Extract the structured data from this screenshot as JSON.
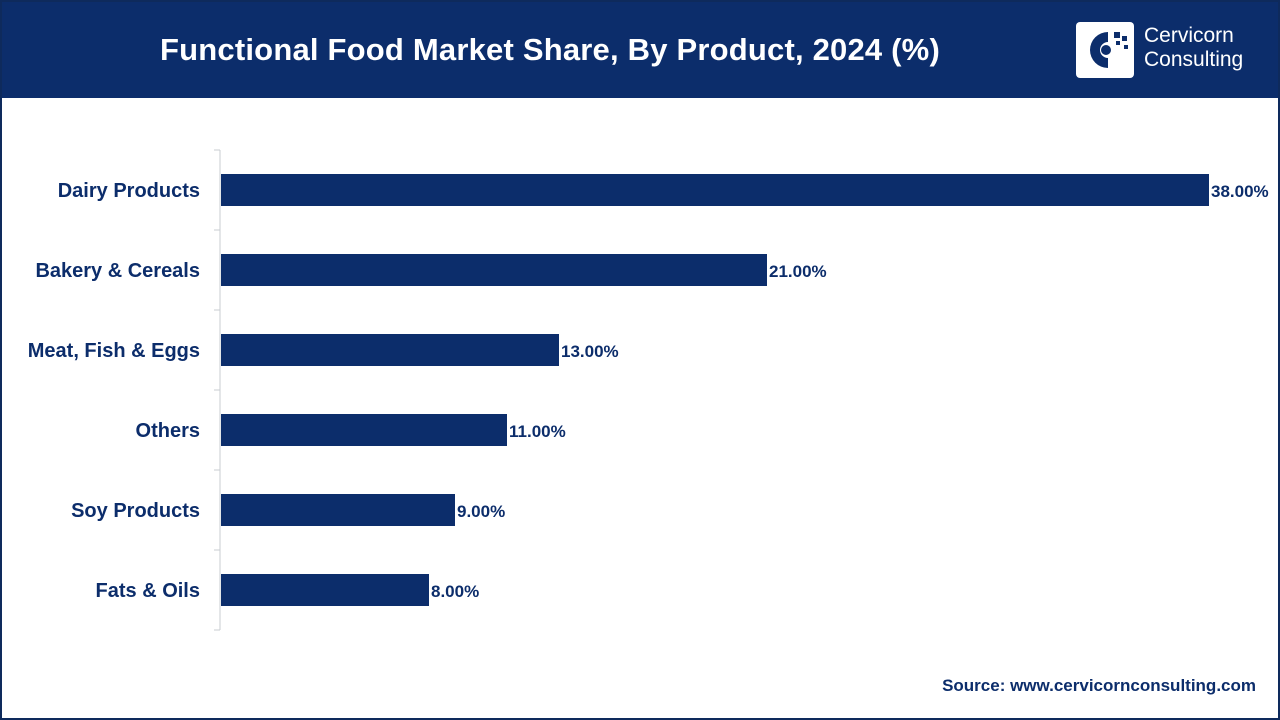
{
  "header": {
    "title": "Functional Food Market Share, By Product, 2024 (%)",
    "logo_line1": "Cervicorn",
    "logo_line2": "Consulting"
  },
  "footer": {
    "source": "Source: www.cervicornconsulting.com"
  },
  "colors": {
    "header_bg": "#0c2d6b",
    "bar": "#0c2d6b",
    "text": "#0c2d6b"
  },
  "chart_data": {
    "type": "bar",
    "orientation": "horizontal",
    "title": "Functional Food Market Share, By Product, 2024 (%)",
    "categories": [
      "Dairy Products",
      "Bakery & Cereals",
      "Meat, Fish & Eggs",
      "Others",
      "Soy Products",
      "Fats & Oils"
    ],
    "values": [
      38,
      21,
      13,
      11,
      9,
      8
    ],
    "value_labels": [
      "38.00%",
      "21.00%",
      "13.00%",
      "11.00%",
      "9.00%",
      "8.00%"
    ],
    "xlim": [
      0,
      38
    ],
    "xlabel": "",
    "ylabel": "",
    "grid": false,
    "legend": "none"
  }
}
